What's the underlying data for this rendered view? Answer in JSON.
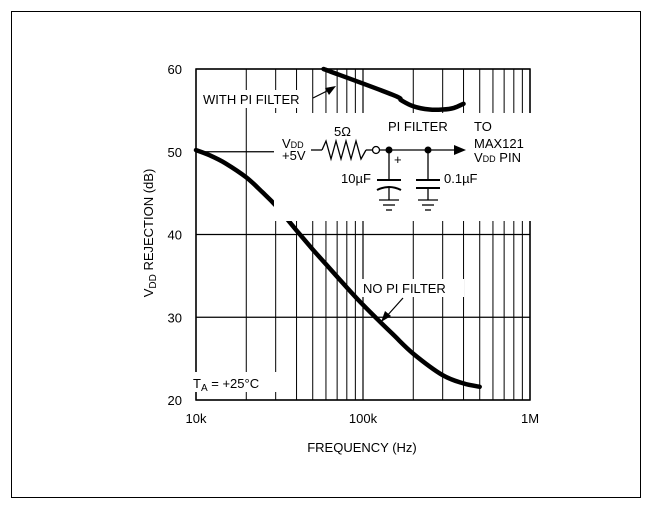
{
  "chart_data": {
    "type": "line",
    "xlabel": "FREQUENCY (Hz)",
    "ylabel_parts": [
      "V",
      "DD",
      " REJECTION (dB)"
    ],
    "x_scale": "log",
    "xlim": [
      10000,
      1000000
    ],
    "ylim": [
      20,
      60
    ],
    "x_ticks": [
      10000,
      100000,
      1000000
    ],
    "x_tick_labels": [
      "10k",
      "100k",
      "1M"
    ],
    "y_ticks": [
      20,
      30,
      40,
      50,
      60
    ],
    "y_tick_labels": [
      "20",
      "30",
      "40",
      "50",
      "60"
    ],
    "grid": true,
    "series": [
      {
        "name": "NO PI FILTER",
        "x": [
          10000,
          12000,
          15000,
          20000,
          25000,
          30000,
          40000,
          50000,
          60000,
          80000,
          100000,
          150000,
          200000,
          300000,
          400000,
          500000
        ],
        "y": [
          50.2,
          49.6,
          48.6,
          46.9,
          45.1,
          43.5,
          40.5,
          38.2,
          36.4,
          33.6,
          31.5,
          28.0,
          25.6,
          23.0,
          22.0,
          21.6
        ]
      },
      {
        "name": "WITH PI FILTER",
        "x": [
          150000,
          170000,
          200000,
          250000,
          300000,
          350000,
          400000
        ],
        "y": [
          56.9,
          56.2,
          55.5,
          55.1,
          55.1,
          55.3,
          55.8
        ],
        "x_upper_start": 58000,
        "y_upper_start": 60
      }
    ],
    "annotations": {
      "with_pi_filter": "WITH PI FILTER",
      "no_pi_filter": "NO PI FILTER",
      "temperature": {
        "main": "T",
        "sub": "A",
        "rest": " = +25°C"
      }
    },
    "inset_circuit": {
      "title": "PI FILTER",
      "vdd_label": {
        "main": "V",
        "sub": "DD"
      },
      "supply": "+5V",
      "resistor": "5Ω",
      "cap1": "10µF",
      "cap1_polarity": "+",
      "cap2": "0.1µF",
      "destination_line1": "TO",
      "destination_line2": "MAX121",
      "destination_line3": {
        "main": "V",
        "sub": "DD",
        "rest": " PIN"
      }
    }
  }
}
